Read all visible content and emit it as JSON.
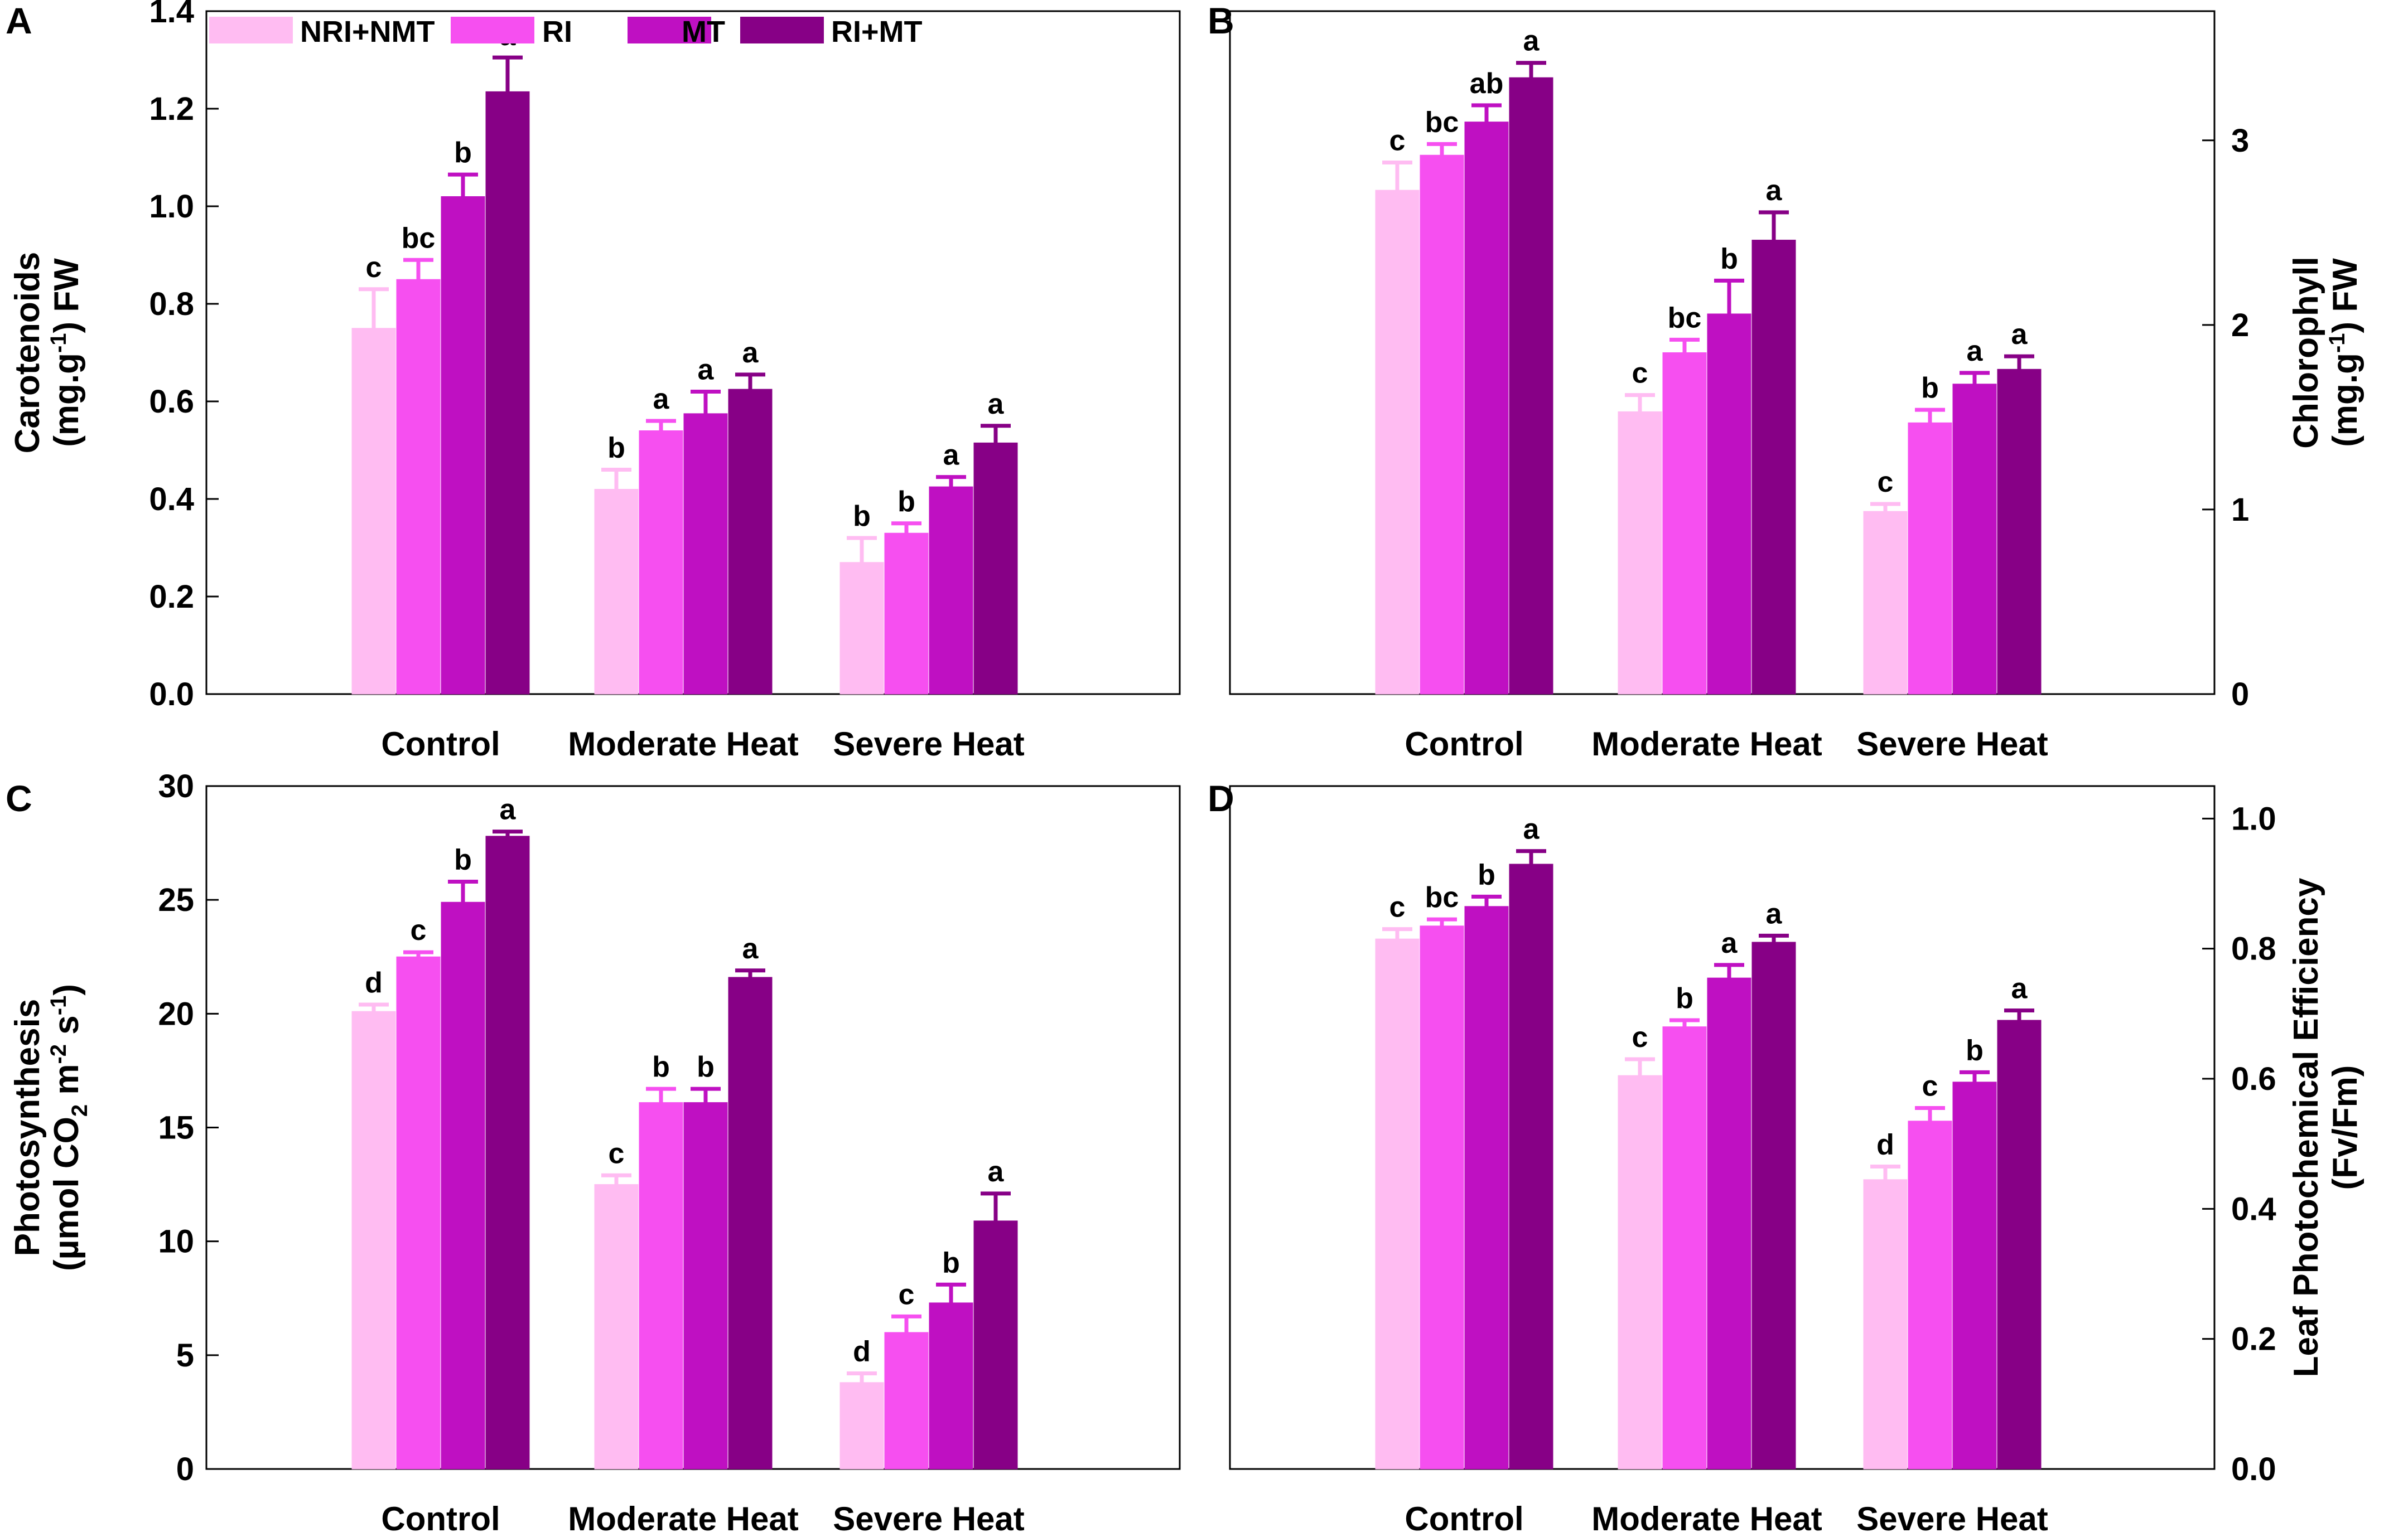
{
  "legend": {
    "items": [
      {
        "label": "NRI+NMT",
        "color": "#FFBCF2"
      },
      {
        "label": "RI",
        "color": "#F64FF0"
      },
      {
        "label": "MT",
        "color": "#BF10C2"
      },
      {
        "label": "RI+MT",
        "color": "#870086"
      }
    ]
  },
  "chart_data": [
    {
      "panel": "A",
      "type": "bar",
      "ylabel_line1": "Carotenoids",
      "ylabel_line2": "(mg.g-1) FW",
      "y_axis_side": "left",
      "ylim": [
        0,
        1.4
      ],
      "yticks": [
        0.0,
        0.2,
        0.4,
        0.6,
        0.8,
        1.0,
        1.2,
        1.4
      ],
      "ytick_labels": [
        "0.0",
        "0.2",
        "0.4",
        "0.6",
        "0.8",
        "1.0",
        "1.2",
        "1.4"
      ],
      "categories": [
        "Control",
        "Moderate Heat",
        "Severe Heat"
      ],
      "series": [
        {
          "name": "NRI+NMT",
          "values": [
            0.75,
            0.42,
            0.27
          ],
          "errors": [
            0.08,
            0.04,
            0.05
          ],
          "letters": [
            "c",
            "b",
            "b"
          ]
        },
        {
          "name": "RI",
          "values": [
            0.85,
            0.54,
            0.33
          ],
          "errors": [
            0.04,
            0.02,
            0.02
          ],
          "letters": [
            "bc",
            "a",
            "b"
          ]
        },
        {
          "name": "MT",
          "values": [
            1.02,
            0.575,
            0.425
          ],
          "errors": [
            0.045,
            0.045,
            0.02
          ],
          "letters": [
            "b",
            "a",
            "a"
          ]
        },
        {
          "name": "RI+MT",
          "values": [
            1.235,
            0.625,
            0.515
          ],
          "errors": [
            0.07,
            0.03,
            0.035
          ],
          "letters": [
            "a",
            "a",
            "a"
          ]
        }
      ]
    },
    {
      "panel": "B",
      "type": "bar",
      "ylabel_line1": "Chlorophyll",
      "ylabel_line2": "(mg.g-1) FW",
      "y_axis_side": "right",
      "ylim": [
        0,
        3.7
      ],
      "yticks": [
        0,
        1,
        2,
        3
      ],
      "ytick_labels": [
        "0",
        "1",
        "2",
        "3"
      ],
      "categories": [
        "Control",
        "Moderate Heat",
        "Severe Heat"
      ],
      "series": [
        {
          "name": "NRI+NMT",
          "values": [
            2.73,
            1.53,
            0.99
          ],
          "errors": [
            0.15,
            0.09,
            0.04
          ],
          "letters": [
            "c",
            "c",
            "c"
          ]
        },
        {
          "name": "RI",
          "values": [
            2.92,
            1.85,
            1.47
          ],
          "errors": [
            0.06,
            0.07,
            0.07
          ],
          "letters": [
            "bc",
            "bc",
            "b"
          ]
        },
        {
          "name": "MT",
          "values": [
            3.1,
            2.06,
            1.68
          ],
          "errors": [
            0.09,
            0.18,
            0.06
          ],
          "letters": [
            "ab",
            "b",
            "a"
          ]
        },
        {
          "name": "RI+MT",
          "values": [
            3.34,
            2.46,
            1.76
          ],
          "errors": [
            0.08,
            0.15,
            0.07
          ],
          "letters": [
            "a",
            "a",
            "a"
          ]
        }
      ]
    },
    {
      "panel": "C",
      "type": "bar",
      "ylabel_line1": "Photosynthesis",
      "ylabel_line2": "(µmol CO2 m-2 s-1)",
      "y_axis_side": "left",
      "ylim": [
        0,
        30
      ],
      "yticks": [
        0,
        5,
        10,
        15,
        20,
        25,
        30
      ],
      "ytick_labels": [
        "0",
        "5",
        "10",
        "15",
        "20",
        "25",
        "30"
      ],
      "categories": [
        "Control",
        "Moderate Heat",
        "Severe Heat"
      ],
      "series": [
        {
          "name": "NRI+NMT",
          "values": [
            20.1,
            12.5,
            3.8
          ],
          "errors": [
            0.3,
            0.4,
            0.4
          ],
          "letters": [
            "d",
            "c",
            "d"
          ]
        },
        {
          "name": "RI",
          "values": [
            22.5,
            16.1,
            6.0
          ],
          "errors": [
            0.2,
            0.6,
            0.7
          ],
          "letters": [
            "c",
            "b",
            "c"
          ]
        },
        {
          "name": "MT",
          "values": [
            24.9,
            16.1,
            7.3
          ],
          "errors": [
            0.9,
            0.6,
            0.8
          ],
          "letters": [
            "b",
            "b",
            "b"
          ]
        },
        {
          "name": "RI+MT",
          "values": [
            27.8,
            21.6,
            10.9
          ],
          "errors": [
            0.2,
            0.3,
            1.2
          ],
          "letters": [
            "a",
            "a",
            "a"
          ]
        }
      ]
    },
    {
      "panel": "D",
      "type": "bar",
      "ylabel_line1": "Leaf Photochemical Efficiency",
      "ylabel_line2": "(Fv/Fm)",
      "y_axis_side": "right",
      "ylim": [
        0,
        1.05
      ],
      "yticks": [
        0.0,
        0.2,
        0.4,
        0.6,
        0.8,
        1.0
      ],
      "ytick_labels": [
        "0.0",
        "0.2",
        "0.4",
        "0.6",
        "0.8",
        "1.0"
      ],
      "categories": [
        "Control",
        "Moderate Heat",
        "Severe Heat"
      ],
      "series": [
        {
          "name": "NRI+NMT",
          "values": [
            0.815,
            0.605,
            0.445
          ],
          "errors": [
            0.015,
            0.025,
            0.02
          ],
          "letters": [
            "c",
            "c",
            "d"
          ]
        },
        {
          "name": "RI",
          "values": [
            0.835,
            0.68,
            0.535
          ],
          "errors": [
            0.01,
            0.01,
            0.02
          ],
          "letters": [
            "bc",
            "b",
            "c"
          ]
        },
        {
          "name": "MT",
          "values": [
            0.865,
            0.755,
            0.595
          ],
          "errors": [
            0.015,
            0.02,
            0.015
          ],
          "letters": [
            "b",
            "a",
            "b"
          ]
        },
        {
          "name": "RI+MT",
          "values": [
            0.93,
            0.81,
            0.69
          ],
          "errors": [
            0.02,
            0.01,
            0.015
          ],
          "letters": [
            "a",
            "a",
            "a"
          ]
        }
      ]
    }
  ]
}
